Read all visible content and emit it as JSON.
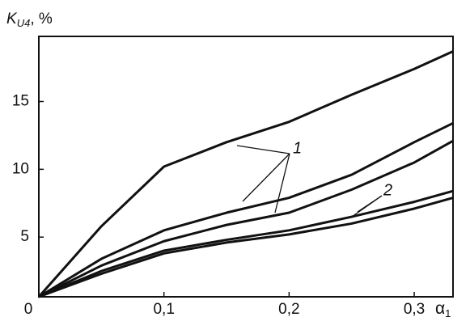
{
  "chart_data": {
    "type": "line",
    "y_label": {
      "main": "K",
      "sub": "U4",
      "unit": ", %"
    },
    "x_label": {
      "main": "α",
      "sub": "1"
    },
    "x": [
      0,
      0.05,
      0.1,
      0.15,
      0.2,
      0.25,
      0.3,
      0.331
    ],
    "series": [
      {
        "color": "#111111",
        "values": [
          0.6,
          5.8,
          10.2,
          12.0,
          13.5,
          15.5,
          17.4,
          18.7
        ]
      },
      {
        "color": "#111111",
        "values": [
          0.6,
          3.4,
          5.5,
          6.8,
          7.9,
          9.6,
          12.0,
          13.4
        ]
      },
      {
        "color": "#111111",
        "values": [
          0.6,
          2.9,
          4.7,
          5.9,
          6.8,
          8.5,
          10.5,
          12.1
        ]
      },
      {
        "color": "#111111",
        "values": [
          0.6,
          2.5,
          4.0,
          4.8,
          5.5,
          6.5,
          7.6,
          8.4
        ]
      },
      {
        "color": "#111111",
        "values": [
          0.6,
          2.3,
          3.8,
          4.6,
          5.2,
          6.0,
          7.1,
          7.9
        ]
      }
    ],
    "annotations": [
      "1",
      "2"
    ],
    "xlim": [
      0,
      0.331
    ],
    "ylim": [
      0.6,
      19.8
    ],
    "xticks": [
      0,
      {
        "value": 0.1,
        "label": "0,1"
      },
      {
        "value": 0.2,
        "label": "0,2"
      },
      {
        "value": 0.3,
        "label": "0,3"
      }
    ],
    "yticks": [
      5,
      10,
      15
    ]
  }
}
